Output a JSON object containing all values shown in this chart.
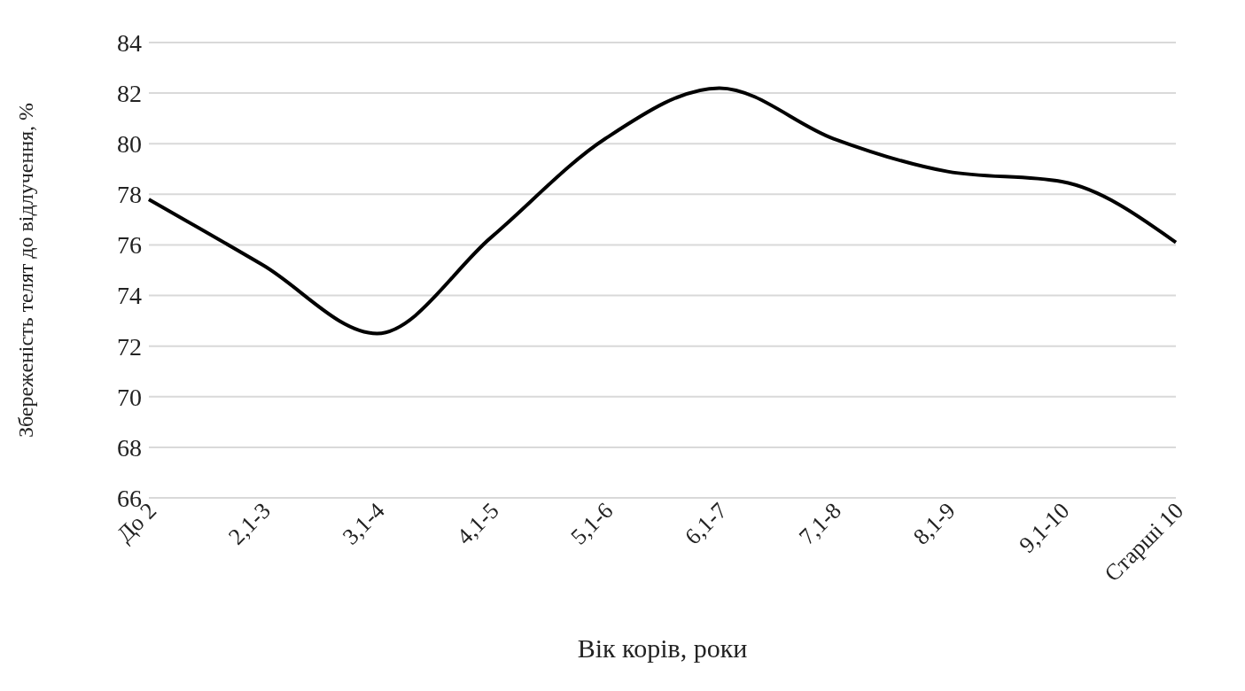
{
  "chart_data": {
    "type": "line",
    "xlabel": "Вік корів, роки",
    "ylabel": "Збереженість телят до відлучення, %",
    "categories": [
      "До 2",
      "2,1-3",
      "3,1-4",
      "4,1-5",
      "5,1-6",
      "6,1-7",
      "7,1-8",
      "8,1-9",
      "9,1-10",
      "Старші 10"
    ],
    "series": [
      {
        "color": "#000000",
        "values": [
          77.8,
          75.2,
          72.5,
          76.3,
          80.2,
          82.2,
          80.2,
          78.9,
          78.5,
          76.1
        ]
      }
    ],
    "ylim": [
      66,
      84
    ],
    "yticks": [
      66,
      68,
      70,
      72,
      74,
      76,
      78,
      80,
      82,
      84
    ],
    "grid": "y",
    "marker": "none",
    "line_style": "solid"
  }
}
